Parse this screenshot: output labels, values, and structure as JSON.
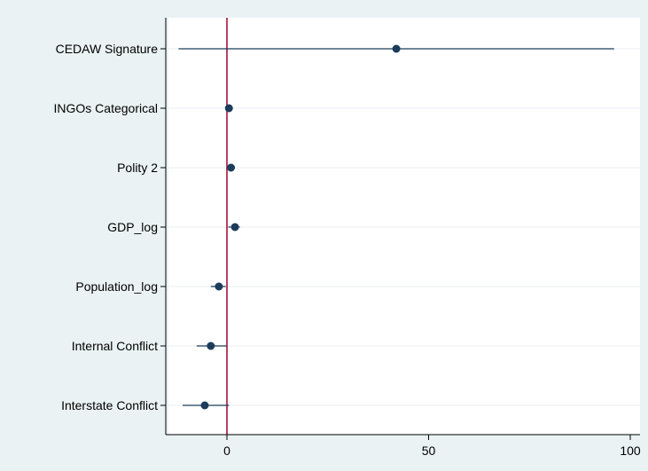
{
  "chart_data": {
    "type": "scatter",
    "subtype": "coefficient-plot",
    "categories": [
      "CEDAW Signature",
      "INGOs Categorical",
      "Polity 2",
      "GDP_log",
      "Population_log",
      "Internal Conflict",
      "Interstate Conflict"
    ],
    "estimates": [
      42,
      0.5,
      1,
      2,
      -2,
      -4,
      -5.5
    ],
    "ci_low": [
      -12,
      -0.3,
      0.2,
      0.3,
      -4,
      -7.5,
      -11
    ],
    "ci_high": [
      96,
      1.2,
      1.8,
      3.2,
      -0.3,
      0,
      0.5
    ],
    "xticks": [
      0,
      50,
      100
    ],
    "xtick_labels": [
      "0",
      "50",
      "100"
    ],
    "xlim": [
      -15,
      102
    ],
    "reference_line": 0,
    "grid": "horizontal",
    "colors": {
      "outer_background": "#eaf2f3",
      "plot_background": "#ffffff",
      "marker": "#1b3c5a",
      "reference_line": "#a3143c",
      "grid": "#e8eef0"
    }
  }
}
